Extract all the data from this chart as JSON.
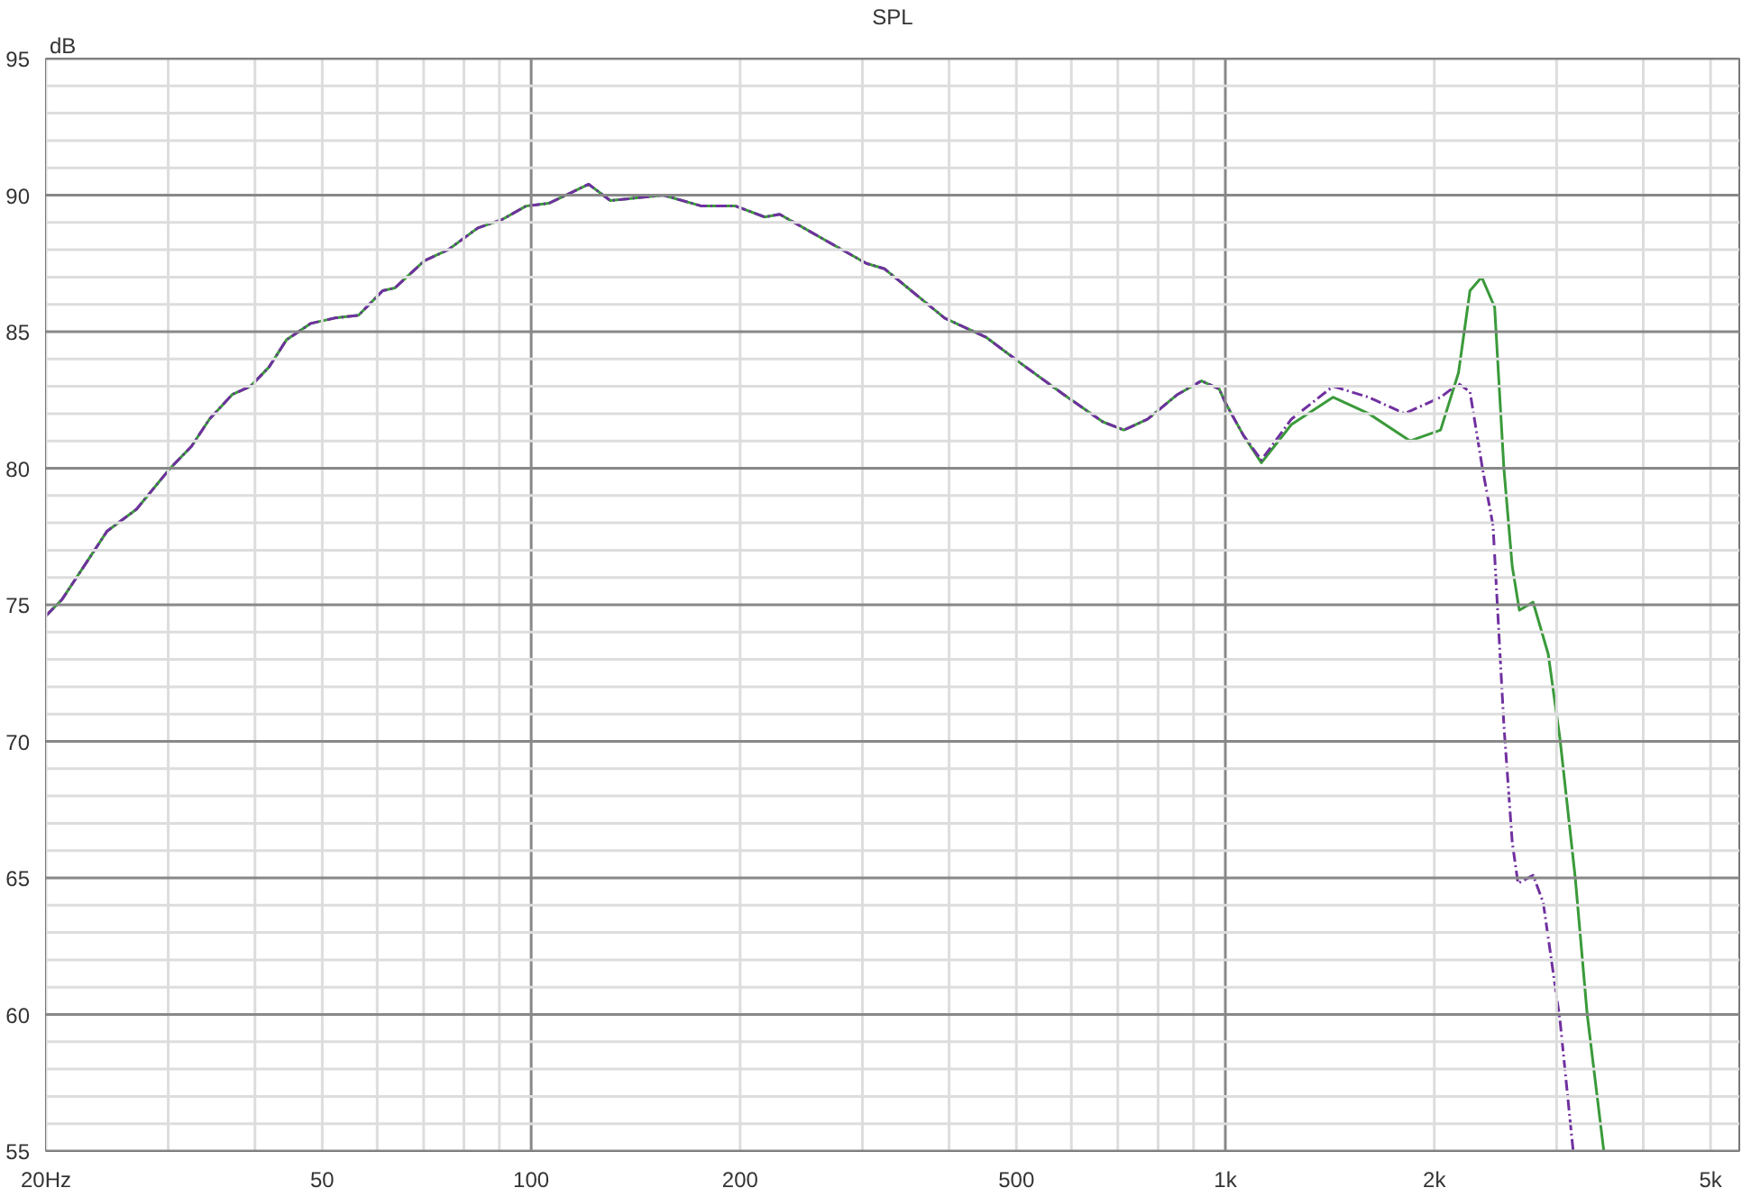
{
  "chart_data": {
    "type": "line",
    "title": "SPL",
    "ylabel": "dB",
    "log": "x",
    "grid": true,
    "xlim": [
      20,
      5500
    ],
    "ylim": [
      55,
      95
    ],
    "xticks": [
      {
        "value": 20,
        "label": "20Hz"
      },
      {
        "value": 30,
        "label": null
      },
      {
        "value": 40,
        "label": null
      },
      50,
      {
        "value": 60,
        "label": null
      },
      {
        "value": 70,
        "label": null
      },
      {
        "value": 80,
        "label": null
      },
      {
        "value": 90,
        "label": null
      },
      100,
      200,
      {
        "value": 300,
        "label": null
      },
      {
        "value": 400,
        "label": null
      },
      500,
      {
        "value": 600,
        "label": null
      },
      {
        "value": 700,
        "label": null
      },
      {
        "value": 800,
        "label": null
      },
      {
        "value": 900,
        "label": null
      },
      {
        "value": 1000,
        "label": "1k"
      },
      {
        "value": 2000,
        "label": "2k"
      },
      {
        "value": 3000,
        "label": null
      },
      {
        "value": 4000,
        "label": null
      },
      {
        "value": 5000,
        "label": "5k"
      }
    ],
    "yticks": [
      55,
      {
        "value": 56,
        "label": null
      },
      {
        "value": 57,
        "label": null
      },
      {
        "value": 58,
        "label": null
      },
      {
        "value": 59,
        "label": null
      },
      60,
      {
        "value": 61,
        "label": null
      },
      {
        "value": 62,
        "label": null
      },
      {
        "value": 63,
        "label": null
      },
      {
        "value": 64,
        "label": null
      },
      65,
      {
        "value": 66,
        "label": null
      },
      {
        "value": 67,
        "label": null
      },
      {
        "value": 68,
        "label": null
      },
      {
        "value": 69,
        "label": null
      },
      70,
      {
        "value": 71,
        "label": null
      },
      {
        "value": 72,
        "label": null
      },
      {
        "value": 73,
        "label": null
      },
      {
        "value": 74,
        "label": null
      },
      75,
      {
        "value": 76,
        "label": null
      },
      {
        "value": 77,
        "label": null
      },
      {
        "value": 78,
        "label": null
      },
      {
        "value": 79,
        "label": null
      },
      80,
      {
        "value": 81,
        "label": null
      },
      {
        "value": 82,
        "label": null
      },
      {
        "value": 83,
        "label": null
      },
      {
        "value": 84,
        "label": null
      },
      85,
      {
        "value": 86,
        "label": null
      },
      {
        "value": 87,
        "label": null
      },
      {
        "value": 88,
        "label": null
      },
      {
        "value": 89,
        "label": null
      },
      90,
      {
        "value": 91,
        "label": null
      },
      {
        "value": 92,
        "label": null
      },
      {
        "value": 93,
        "label": null
      },
      {
        "value": 94,
        "label": null
      },
      95
    ],
    "series": [
      {
        "color": "#3a9a3a",
        "line_style": "solid",
        "x": [
          20,
          21.1,
          24.5,
          27,
          30.2,
          32.4,
          34.4,
          37.1,
          39.4,
          41.9,
          44.4,
          48.1,
          52.1,
          56.4,
          61.1,
          63.6,
          70.2,
          75.9,
          83.8,
          90.7,
          98.3,
          106,
          121,
          130,
          155,
          176,
          197,
          217,
          228,
          259,
          304,
          323,
          394,
          452,
          510,
          585,
          666,
          714,
          773,
          853,
          924,
          980,
          1000,
          1062,
          1127,
          1245,
          1429,
          1609,
          1846,
          2042,
          2167,
          2251,
          2340,
          2443,
          2519,
          2590,
          2652,
          2775,
          2918,
          3034,
          3192,
          3321,
          3509
        ],
        "values": [
          74.6,
          75.2,
          77.7,
          78.5,
          80.0,
          80.8,
          81.8,
          82.7,
          83.0,
          83.7,
          84.7,
          85.3,
          85.5,
          85.6,
          86.5,
          86.6,
          87.6,
          88.0,
          88.8,
          89.1,
          89.6,
          89.7,
          90.4,
          89.8,
          90.0,
          89.6,
          89.6,
          89.2,
          89.3,
          88.5,
          87.5,
          87.3,
          85.5,
          84.8,
          83.8,
          82.7,
          81.7,
          81.4,
          81.8,
          82.7,
          83.2,
          82.9,
          82.4,
          81.2,
          80.2,
          81.6,
          82.6,
          82.0,
          81.0,
          81.4,
          83.5,
          86.5,
          87.0,
          85.9,
          80.0,
          76.4,
          74.8,
          75.1,
          73.2,
          70.1,
          65.0,
          60.0,
          55.0
        ]
      },
      {
        "color": "#7030a0",
        "line_style": "dashed",
        "x": [
          20,
          21.1,
          24.5,
          27,
          30.2,
          32.4,
          34.4,
          37.1,
          39.4,
          41.9,
          44.4,
          48.1,
          52.1,
          56.4,
          61.1,
          63.6,
          70.2,
          75.9,
          83.8,
          90.7,
          98.3,
          106,
          121,
          130,
          155,
          176,
          197,
          217,
          228,
          259,
          304,
          323,
          394,
          452,
          510,
          585,
          666,
          714,
          773,
          853,
          924,
          980,
          1000,
          1062,
          1127,
          1245,
          1429,
          1609,
          1812,
          2042,
          2167,
          2251,
          2346,
          2430,
          2519,
          2590,
          2640,
          2775,
          2870,
          3034,
          3170
        ],
        "values": [
          74.6,
          75.2,
          77.7,
          78.5,
          80.0,
          80.8,
          81.8,
          82.7,
          83.0,
          83.7,
          84.7,
          85.3,
          85.5,
          85.6,
          86.5,
          86.6,
          87.6,
          88.0,
          88.8,
          89.1,
          89.6,
          89.7,
          90.4,
          89.8,
          90.0,
          89.6,
          89.6,
          89.2,
          89.3,
          88.5,
          87.5,
          87.3,
          85.5,
          84.8,
          83.8,
          82.7,
          81.7,
          81.4,
          81.8,
          82.7,
          83.2,
          82.9,
          82.4,
          81.2,
          80.3,
          81.8,
          83.0,
          82.6,
          82.0,
          82.6,
          83.1,
          82.8,
          80.0,
          77.9,
          70.6,
          66.3,
          64.8,
          65.1,
          64.1,
          59.8,
          55.0
        ]
      }
    ]
  }
}
